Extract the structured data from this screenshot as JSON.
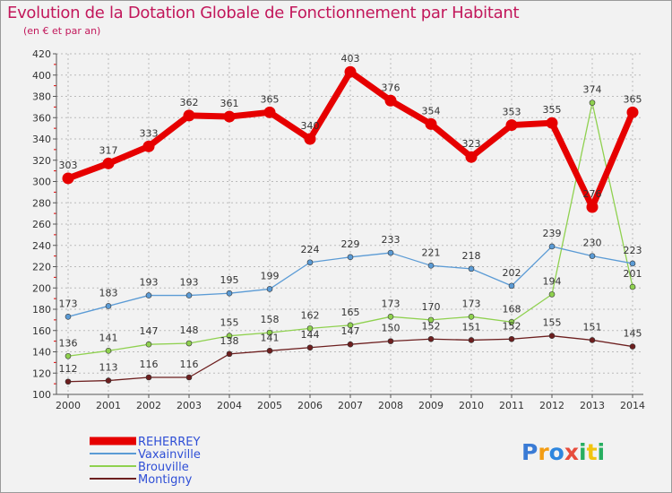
{
  "chart_data": {
    "type": "line",
    "title": "Evolution de la Dotation Globale de Fonctionnement par Habitant",
    "subtitle": "(en € et par an)",
    "x": [
      "2000",
      "2001",
      "2002",
      "2003",
      "2004",
      "2005",
      "2006",
      "2007",
      "2008",
      "2009",
      "2010",
      "2011",
      "2012",
      "2013",
      "2014"
    ],
    "ylim": [
      100,
      420
    ],
    "yticks": [
      100,
      120,
      140,
      160,
      180,
      200,
      220,
      240,
      260,
      280,
      300,
      320,
      340,
      360,
      380,
      400,
      420
    ],
    "grid": "horizontal-dashed",
    "series": [
      {
        "name": "REHERREY",
        "color": "#e60000",
        "values": [
          303,
          317,
          333,
          362,
          361,
          365,
          340,
          403,
          376,
          354,
          323,
          353,
          355,
          276,
          365
        ],
        "labels": [
          "303",
          "317",
          "333",
          "362",
          "361",
          "365",
          "340",
          "403",
          "376",
          "354",
          "323",
          "353",
          "355",
          "276",
          "365"
        ],
        "bold": true
      },
      {
        "name": "Vaxainville",
        "color": "#5b9bd5",
        "values": [
          173,
          183,
          193,
          193,
          195,
          199,
          224,
          229,
          233,
          221,
          218,
          202,
          239,
          230,
          223
        ],
        "labels": [
          "173",
          "183",
          "193",
          "193",
          "195",
          "199",
          "224",
          "229",
          "233",
          "221",
          "218",
          "202",
          "239",
          "230",
          "223"
        ]
      },
      {
        "name": "Brouville",
        "color": "#8fd14f",
        "values": [
          136,
          141,
          147,
          148,
          155,
          158,
          162,
          165,
          173,
          170,
          173,
          168,
          194,
          374,
          201
        ],
        "labels": [
          "136",
          "141",
          "147",
          "148",
          "155",
          "158",
          "162",
          "165",
          "173",
          "170",
          "173",
          "168",
          "194",
          "374",
          "201"
        ]
      },
      {
        "name": "Montigny",
        "color": "#6d1f1f",
        "values": [
          112,
          113,
          116,
          116,
          138,
          141,
          144,
          147,
          150,
          152,
          151,
          152,
          155,
          151,
          145
        ],
        "labels": [
          "112",
          "113",
          "116",
          "116",
          "138",
          "141",
          "144",
          "147",
          "150",
          "152",
          "151",
          "152",
          "155",
          "151",
          "145"
        ]
      }
    ],
    "legend": "bottom-left"
  },
  "brand": {
    "logo_text": "Proxiti",
    "letters": [
      {
        "ch": "P",
        "color": "#3a7bd5"
      },
      {
        "ch": "r",
        "color": "#f39c12"
      },
      {
        "ch": "o",
        "color": "#2e86de"
      },
      {
        "ch": "x",
        "color": "#e74c3c"
      },
      {
        "ch": "i",
        "color": "#27ae60"
      },
      {
        "ch": "t",
        "color": "#f1c40f"
      },
      {
        "ch": "i",
        "color": "#27ae60"
      }
    ]
  },
  "colors": {
    "title": "#c2185b",
    "axis": "#555555",
    "grid": "#bbbbbb"
  }
}
